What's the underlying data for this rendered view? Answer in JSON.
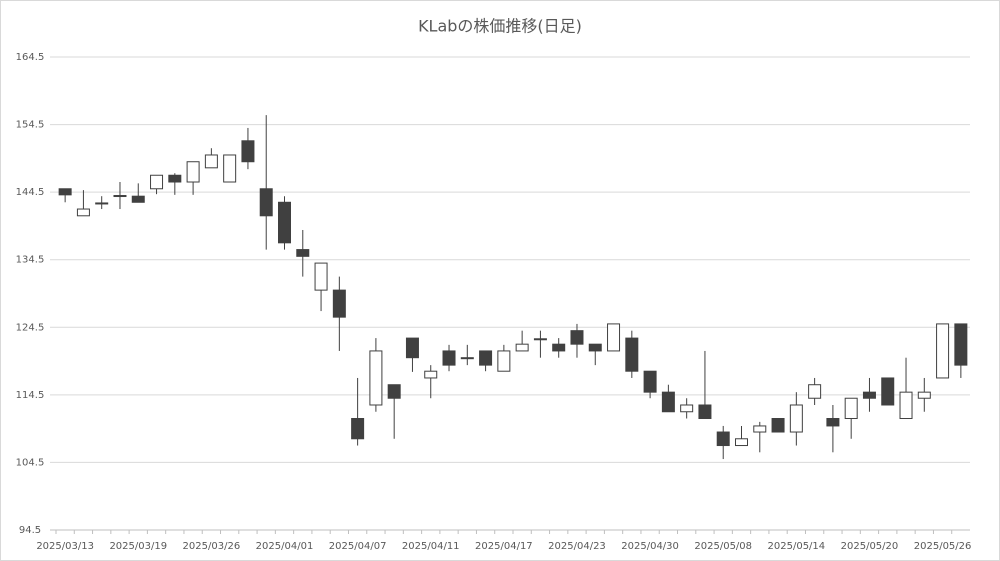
{
  "chart_data": {
    "type": "candlestick",
    "title": "KLabの株価推移(日足)",
    "categories": [
      "2025/03/13",
      null,
      null,
      null,
      "2025/03/19",
      null,
      null,
      null,
      "2025/03/26",
      null,
      null,
      null,
      "2025/04/01",
      null,
      null,
      null,
      "2025/04/07",
      null,
      null,
      null,
      "2025/04/11",
      null,
      null,
      null,
      "2025/04/17",
      null,
      null,
      null,
      "2025/04/23",
      null,
      null,
      null,
      "2025/04/30",
      null,
      null,
      null,
      "2025/05/08",
      null,
      null,
      null,
      "2025/05/14",
      null,
      null,
      null,
      "2025/05/20",
      null,
      null,
      null,
      "2025/05/26",
      null
    ],
    "open": [
      145.0,
      141.0,
      142.8,
      143.9,
      143.9,
      145.0,
      147.0,
      146.0,
      148.1,
      146.0,
      152.1,
      145.0,
      143.0,
      136.0,
      130.0,
      130.0,
      111.0,
      113.0,
      116.0,
      122.9,
      117.0,
      121.0,
      120.0,
      121.0,
      118.0,
      121.0,
      122.8,
      122.0,
      124.0,
      122.0,
      121.0,
      122.9,
      118.0,
      114.9,
      112.0,
      113.0,
      109.0,
      107.0,
      109.0,
      111.0,
      109.0,
      114.0,
      111.0,
      111.0,
      114.9,
      117.0,
      111.0,
      114.0,
      117.0,
      125.0
    ],
    "high": [
      145.0,
      144.8,
      143.9,
      146.0,
      145.8,
      147.0,
      147.3,
      149.0,
      151.0,
      150.0,
      154.0,
      155.9,
      143.9,
      138.9,
      134.0,
      132.0,
      117.0,
      122.9,
      116.0,
      122.9,
      118.9,
      121.9,
      121.9,
      121.0,
      121.9,
      124.0,
      124.0,
      122.9,
      125.0,
      122.0,
      125.0,
      124.0,
      118.0,
      116.0,
      114.0,
      121.0,
      109.9,
      109.9,
      110.5,
      111.0,
      114.9,
      117.0,
      113.0,
      114.0,
      117.0,
      117.0,
      120.0,
      117.0,
      125.0,
      125.0
    ],
    "low": [
      143.0,
      141.0,
      142.0,
      142.0,
      143.0,
      144.2,
      144.1,
      144.1,
      148.1,
      146.0,
      147.9,
      136.0,
      136.0,
      132.0,
      126.9,
      121.0,
      107.0,
      112.0,
      108.0,
      117.9,
      114.0,
      118.0,
      118.9,
      118.0,
      118.0,
      121.0,
      120.0,
      120.0,
      120.0,
      118.9,
      121.0,
      117.0,
      114.0,
      112.0,
      111.0,
      111.0,
      105.0,
      107.0,
      106.0,
      109.0,
      107.0,
      113.0,
      106.0,
      108.0,
      112.0,
      113.0,
      111.0,
      112.0,
      117.0,
      117.0
    ],
    "close": [
      144.1,
      142.0,
      142.9,
      144.0,
      143.0,
      147.0,
      146.0,
      149.0,
      150.0,
      150.0,
      149.0,
      141.0,
      137.0,
      135.0,
      134.0,
      126.0,
      108.0,
      121.0,
      114.0,
      120.0,
      118.0,
      118.9,
      119.9,
      118.9,
      121.0,
      122.0,
      122.7,
      121.0,
      122.0,
      121.0,
      125.0,
      118.0,
      114.9,
      112.0,
      113.0,
      111.0,
      107.0,
      108.0,
      109.9,
      109.0,
      113.0,
      116.0,
      109.9,
      114.0,
      114.0,
      113.0,
      114.9,
      114.9,
      125.0,
      118.9
    ],
    "up_color": "#ffffff",
    "down_color": "#404040",
    "edge_color": "#404040",
    "ylim": [
      94.5,
      164.5
    ],
    "yticks": [
      94.5,
      104.5,
      114.5,
      124.5,
      134.5,
      144.5,
      154.5,
      164.5
    ],
    "grid": true
  }
}
